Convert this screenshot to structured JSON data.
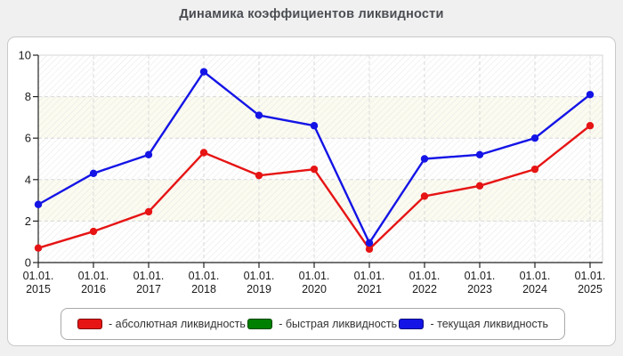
{
  "title": "Динамика коэффициентов ликвидности",
  "colors": {
    "page_bg": "#f0f0f0",
    "panel_bg": "#ffffff",
    "panel_border": "#c9c9c9",
    "axis": "#222222",
    "grid": "#d8d8d8",
    "plot_border": "#d4d4d4",
    "band_white": "#ffffff",
    "band_ivory": "#fbfbf0",
    "hatch": "#e6e6e6",
    "title_text": "#4a4d52",
    "tick_text": "#1a1a1a",
    "legend_border": "#a8a8a8",
    "legend_text": "#333333",
    "red": "#e61414",
    "green": "#008000",
    "blue": "#1414e6"
  },
  "chart_data": {
    "type": "line",
    "title": "Динамика коэффициентов ликвидности",
    "x_prefix": "01.01.",
    "categories": [
      "2015",
      "2016",
      "2017",
      "2018",
      "2019",
      "2020",
      "2021",
      "2022",
      "2023",
      "2024",
      "2025"
    ],
    "series": [
      {
        "name": "абсолютная ликвидность",
        "color": "#e61414",
        "marker": "circle",
        "visible_on_plot": true,
        "values": [
          0.7,
          1.5,
          2.45,
          5.3,
          4.2,
          4.5,
          0.65,
          3.2,
          3.7,
          4.5,
          6.6
        ]
      },
      {
        "name": "быстрая ликвидность",
        "color": "#008000",
        "marker": "circle",
        "visible_on_plot": false,
        "values": null
      },
      {
        "name": "текущая ликвидность",
        "color": "#1414e6",
        "marker": "circle",
        "visible_on_plot": true,
        "values": [
          2.8,
          4.3,
          5.2,
          9.2,
          7.1,
          6.6,
          0.95,
          5.0,
          5.2,
          6.0,
          8.1
        ]
      }
    ],
    "xlabel": "",
    "ylabel": "",
    "ylim": [
      0,
      10
    ],
    "yticks": [
      0,
      2,
      4,
      6,
      8,
      10
    ],
    "grid": "dashed",
    "plot_background": "hatched, alternating white/ivory horizontal bands",
    "legend_position": "bottom"
  },
  "legend": {
    "items": [
      {
        "label": "- абсолютная ликвидность",
        "color": "#e61414"
      },
      {
        "label": "- быстрая ликвидность",
        "color": "#008000"
      },
      {
        "label": "- текущая ликвидность",
        "color": "#1414e6"
      }
    ]
  }
}
